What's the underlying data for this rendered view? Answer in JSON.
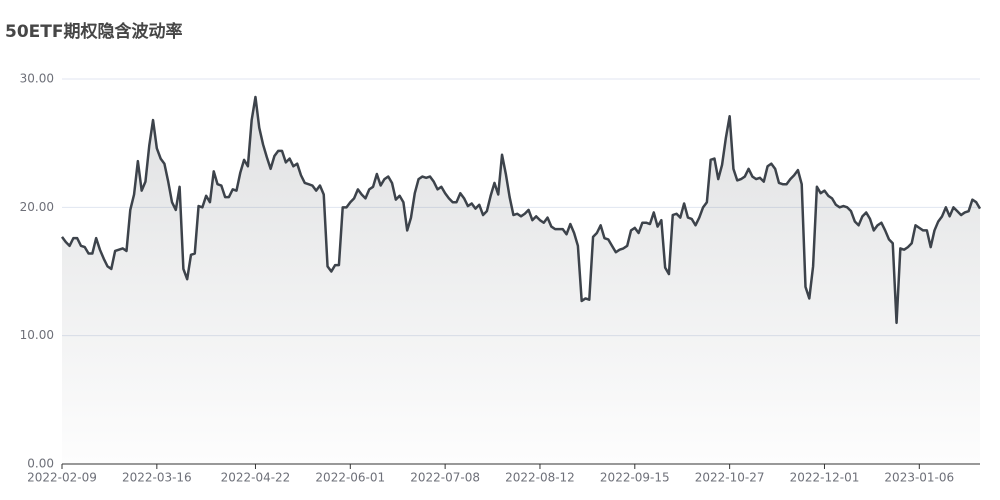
{
  "chart_data": {
    "type": "line",
    "title": "50ETF期权隐含波动率",
    "categories": [
      "2022-02-09",
      null,
      null,
      null,
      null,
      null,
      null,
      null,
      null,
      null,
      null,
      null,
      null,
      null,
      null,
      null,
      null,
      null,
      null,
      null,
      null,
      null,
      null,
      null,
      null,
      "2022-03-16",
      null,
      null,
      null,
      null,
      null,
      null,
      null,
      null,
      null,
      null,
      null,
      null,
      null,
      null,
      null,
      null,
      null,
      null,
      null,
      null,
      null,
      null,
      null,
      null,
      null,
      "2022-04-22",
      null,
      null,
      null,
      null,
      null,
      null,
      null,
      null,
      null,
      null,
      null,
      null,
      null,
      null,
      null,
      null,
      null,
      null,
      null,
      null,
      null,
      null,
      null,
      null,
      "2022-06-01",
      null,
      null,
      null,
      null,
      null,
      null,
      null,
      null,
      null,
      null,
      null,
      null,
      null,
      null,
      null,
      null,
      null,
      null,
      null,
      null,
      null,
      null,
      null,
      null,
      "2022-07-08",
      null,
      null,
      null,
      null,
      null,
      null,
      null,
      null,
      null,
      null,
      null,
      null,
      null,
      null,
      null,
      null,
      null,
      null,
      null,
      null,
      null,
      null,
      null,
      null,
      "2022-08-12",
      null,
      null,
      null,
      null,
      null,
      null,
      null,
      null,
      null,
      null,
      null,
      null,
      null,
      null,
      null,
      null,
      null,
      null,
      null,
      null,
      null,
      null,
      null,
      null,
      "2022-09-15",
      null,
      null,
      null,
      null,
      null,
      null,
      null,
      null,
      null,
      null,
      null,
      null,
      null,
      null,
      null,
      null,
      null,
      null,
      null,
      null,
      null,
      null,
      null,
      null,
      "2022-10-27",
      null,
      null,
      null,
      null,
      null,
      null,
      null,
      null,
      null,
      null,
      null,
      null,
      null,
      null,
      null,
      null,
      null,
      null,
      null,
      null,
      null,
      null,
      null,
      null,
      "2022-12-01",
      null,
      null,
      null,
      null,
      null,
      null,
      null,
      null,
      null,
      null,
      null,
      null,
      null,
      null,
      null,
      null,
      null,
      null,
      null,
      null,
      null,
      null,
      null,
      null,
      "2023-01-06",
      null,
      null,
      null,
      null,
      null,
      null,
      null,
      null,
      null,
      null,
      null,
      null,
      null,
      null,
      null,
      null
    ],
    "values": [
      17.7,
      17.3,
      17.0,
      17.6,
      17.6,
      17.0,
      16.9,
      16.4,
      16.4,
      17.6,
      16.7,
      16.0,
      15.4,
      15.2,
      16.6,
      16.7,
      16.8,
      16.6,
      19.8,
      21.0,
      23.6,
      21.3,
      22.0,
      24.8,
      26.8,
      24.6,
      23.8,
      23.4,
      22.0,
      20.4,
      19.8,
      21.6,
      15.2,
      14.4,
      16.3,
      16.4,
      20.1,
      20.0,
      20.9,
      20.4,
      22.8,
      21.8,
      21.7,
      20.8,
      20.8,
      21.4,
      21.3,
      22.7,
      23.7,
      23.2,
      26.8,
      28.6,
      26.2,
      24.9,
      23.9,
      23.0,
      24.0,
      24.4,
      24.4,
      23.5,
      23.8,
      23.2,
      23.4,
      22.5,
      21.9,
      21.8,
      21.7,
      21.3,
      21.7,
      21.0,
      15.4,
      15.0,
      15.5,
      15.5,
      20.0,
      20.0,
      20.4,
      20.7,
      21.4,
      21.0,
      20.7,
      21.4,
      21.6,
      22.6,
      21.7,
      22.2,
      22.4,
      21.9,
      20.6,
      20.9,
      20.4,
      18.2,
      19.2,
      21.1,
      22.2,
      22.4,
      22.3,
      22.4,
      22.0,
      21.4,
      21.6,
      21.1,
      20.7,
      20.4,
      20.4,
      21.1,
      20.7,
      20.1,
      20.3,
      19.9,
      20.2,
      19.4,
      19.7,
      20.9,
      21.9,
      21.0,
      24.1,
      22.6,
      20.8,
      19.4,
      19.5,
      19.3,
      19.5,
      19.8,
      19.0,
      19.3,
      19.0,
      18.8,
      19.2,
      18.5,
      18.3,
      18.3,
      18.3,
      17.9,
      18.7,
      18.0,
      17.0,
      12.7,
      12.9,
      12.8,
      17.7,
      18.0,
      18.6,
      17.6,
      17.5,
      17.0,
      16.5,
      16.7,
      16.8,
      17.0,
      18.2,
      18.4,
      18.0,
      18.8,
      18.8,
      18.7,
      19.6,
      18.5,
      19.0,
      15.3,
      14.8,
      19.4,
      19.5,
      19.2,
      20.3,
      19.2,
      19.1,
      18.6,
      19.2,
      20.0,
      20.4,
      23.7,
      23.8,
      22.2,
      23.3,
      25.4,
      27.1,
      23.0,
      22.1,
      22.2,
      22.4,
      23.0,
      22.4,
      22.2,
      22.3,
      22.0,
      23.2,
      23.4,
      23.0,
      21.9,
      21.8,
      21.8,
      22.2,
      22.5,
      22.9,
      21.8,
      13.8,
      12.9,
      15.4,
      21.6,
      21.1,
      21.3,
      20.9,
      20.7,
      20.2,
      20.0,
      20.1,
      20.0,
      19.7,
      18.9,
      18.6,
      19.3,
      19.6,
      19.1,
      18.2,
      18.6,
      18.8,
      18.2,
      17.5,
      17.2,
      11.0,
      16.8,
      16.7,
      16.9,
      17.2,
      18.6,
      18.4,
      18.2,
      18.2,
      16.9,
      18.2,
      18.9,
      19.3,
      20.0,
      19.3,
      20.0,
      19.7,
      19.4,
      19.6,
      19.7,
      20.6,
      20.4,
      19.9
    ],
    "color": "#3d434b",
    "ylim": [
      0,
      30
    ],
    "yticks": [
      {
        "value": 0,
        "label": "0.00"
      },
      {
        "value": 10,
        "label": "10.00"
      },
      {
        "value": 20,
        "label": "20.00"
      },
      {
        "value": 30,
        "label": "30.00"
      }
    ],
    "grid": true
  }
}
